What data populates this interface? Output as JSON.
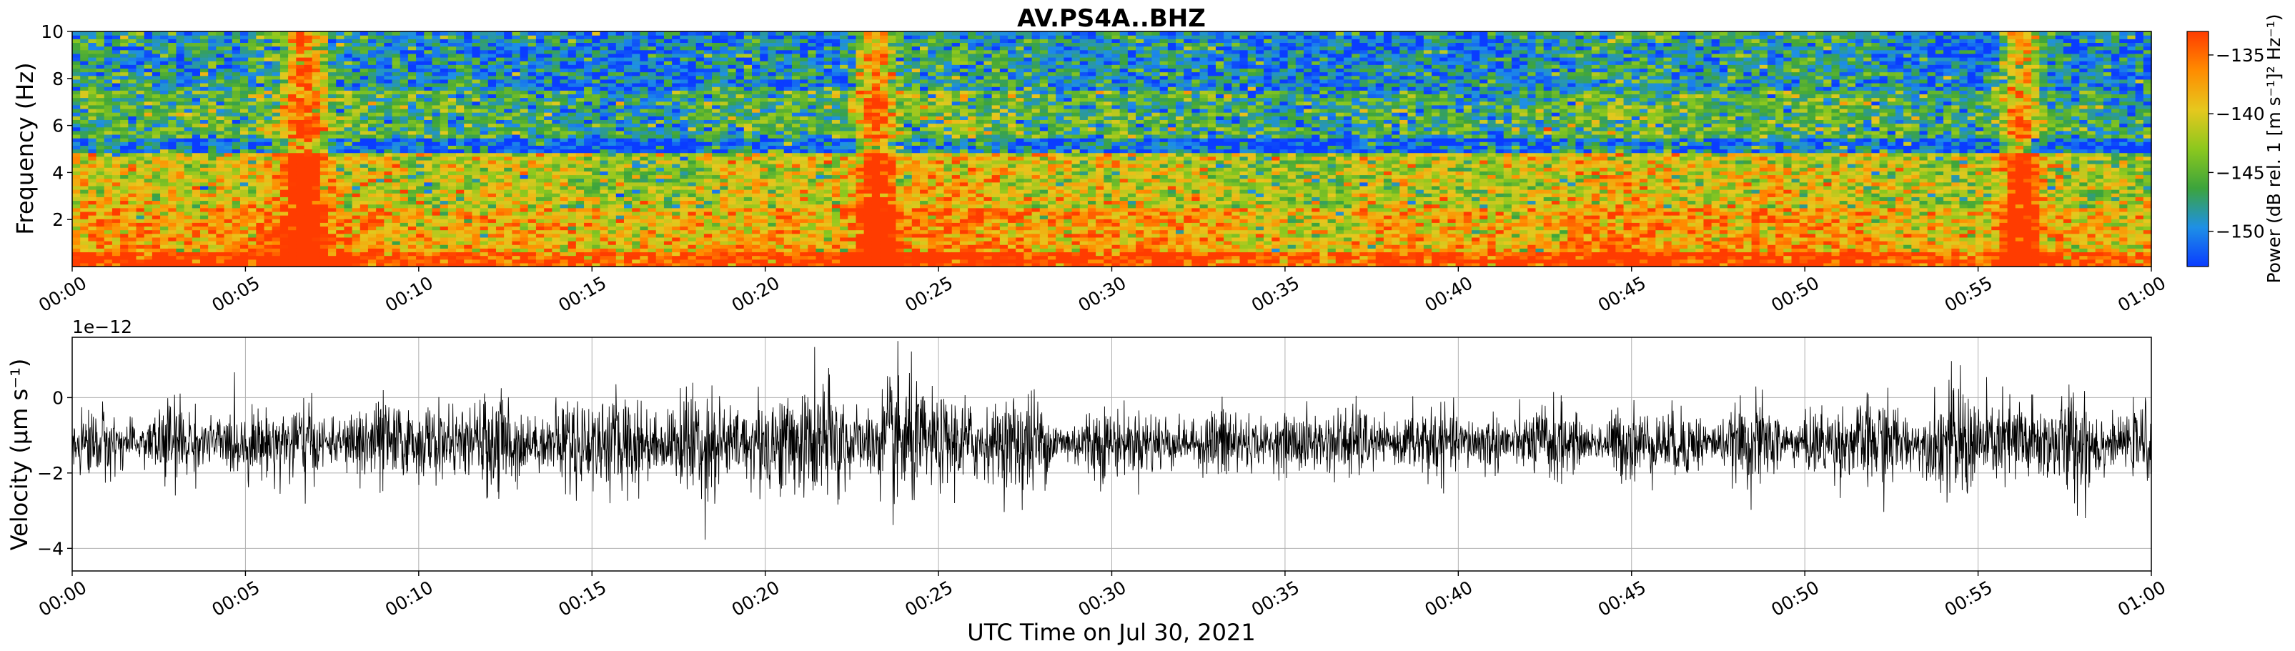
{
  "figure": {
    "title": "AV.PS4A..BHZ",
    "xlabel": "UTC Time on Jul 30, 2021"
  },
  "chart_data": [
    {
      "type": "heatmap",
      "name": "spectrogram",
      "ylabel": "Frequency (Hz)",
      "yticks": [
        2,
        4,
        6,
        8,
        10
      ],
      "ylim": [
        0,
        10
      ],
      "xticks": [
        "00:00",
        "00:05",
        "00:10",
        "00:15",
        "00:20",
        "00:25",
        "00:30",
        "00:35",
        "00:40",
        "00:45",
        "00:50",
        "00:55",
        "01:00"
      ],
      "xlim_minutes": [
        0,
        60
      ],
      "colorbar": {
        "label": "Power (dB rel. 1 [m s⁻¹]² Hz⁻¹)",
        "ticks": [
          -135,
          -140,
          -145,
          -150
        ],
        "range": [
          -153,
          -133
        ],
        "colors": [
          "#0a3cff",
          "#1e90e6",
          "#3ca43c",
          "#8cc81e",
          "#e6c81e",
          "#ff8c00",
          "#ff3c00"
        ]
      },
      "bands": [
        {
          "fmin": 0,
          "fmax": 0.6,
          "level": -133
        },
        {
          "fmin": 0.6,
          "fmax": 2.5,
          "level": -138
        },
        {
          "fmin": 2.5,
          "fmax": 4.8,
          "level": -141
        },
        {
          "fmin": 4.8,
          "fmax": 5.5,
          "level": -151
        },
        {
          "fmin": 5.5,
          "fmax": 7.5,
          "level": -146
        },
        {
          "fmin": 7.5,
          "fmax": 10,
          "level": -149
        }
      ],
      "events_minutes": [
        6.7,
        23.2,
        56.2
      ]
    },
    {
      "type": "line",
      "name": "seismogram",
      "ylabel": "Velocity (µm s⁻¹)",
      "offset_text": "1e−12",
      "yticks": [
        0,
        -2,
        -4
      ],
      "ylim": [
        -4.6,
        1.6
      ],
      "mean": -1.2,
      "xticks": [
        "00:00",
        "00:05",
        "00:10",
        "00:15",
        "00:20",
        "00:25",
        "00:30",
        "00:35",
        "00:40",
        "00:45",
        "00:50",
        "00:55",
        "01:00"
      ],
      "xlim_minutes": [
        0,
        60
      ],
      "envelope": [
        {
          "minute": 0,
          "amp": 1.3
        },
        {
          "minute": 6.7,
          "amp": 1.5
        },
        {
          "minute": 14.5,
          "amp": 1.8
        },
        {
          "minute": 23.5,
          "amp": 2.4
        },
        {
          "minute": 30,
          "amp": 1.3
        },
        {
          "minute": 40,
          "amp": 1.3
        },
        {
          "minute": 50,
          "amp": 1.4
        },
        {
          "minute": 56,
          "amp": 2.2
        },
        {
          "minute": 60,
          "amp": 1.4
        }
      ]
    }
  ]
}
